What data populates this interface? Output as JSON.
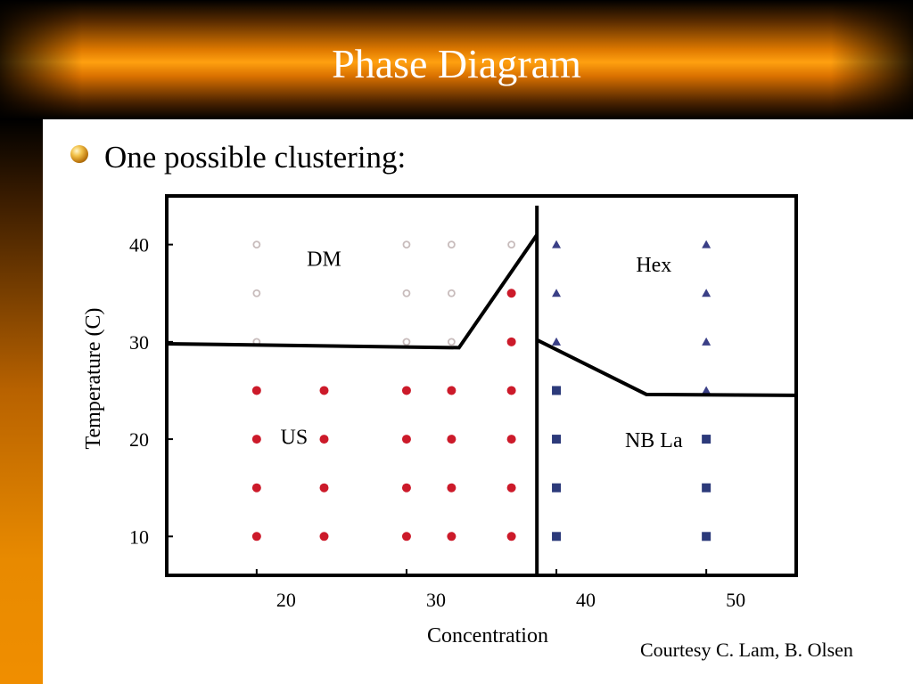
{
  "slide": {
    "title": "Phase Diagram",
    "bullet": "One possible clustering:",
    "credit": "Courtesy C. Lam, B. Olsen"
  },
  "colors": {
    "title_text": "#ffffff",
    "title_bar_accent": "#f39200",
    "sidebar_accent": "#e88a00",
    "us_points": "#cc1a2a",
    "dm_points": "#c8bcbc",
    "hex_points": "#3a3f86",
    "nb_la_points": "#2c3a7a",
    "boundary_lines": "#000000"
  },
  "chart_data": {
    "type": "scatter",
    "xlabel": "Concentration",
    "ylabel": "Temperature (C)",
    "xlim": [
      14,
      56
    ],
    "ylim": [
      6,
      45
    ],
    "xticks": [
      20,
      30,
      40,
      50
    ],
    "yticks": [
      10,
      20,
      30,
      40
    ],
    "regions": [
      {
        "label": "DM",
        "x": 24.5,
        "y": 37.8
      },
      {
        "label": "US",
        "x": 22.5,
        "y": 19.5
      },
      {
        "label": "Hex",
        "x": 46.5,
        "y": 37.2
      },
      {
        "label": "NB La",
        "x": 46.5,
        "y": 19.2
      }
    ],
    "series": [
      {
        "marker": "circle-open",
        "color": "#c8bcbc",
        "points": [
          [
            20,
            40
          ],
          [
            20,
            35
          ],
          [
            20,
            30
          ],
          [
            30,
            40
          ],
          [
            30,
            35
          ],
          [
            30,
            30
          ],
          [
            33,
            40
          ],
          [
            33,
            35
          ],
          [
            33,
            30
          ],
          [
            37,
            40
          ]
        ]
      },
      {
        "marker": "circle-filled",
        "color": "#cc1a2a",
        "points": [
          [
            20,
            25
          ],
          [
            20,
            20
          ],
          [
            20,
            15
          ],
          [
            20,
            10
          ],
          [
            24.5,
            25
          ],
          [
            24.5,
            20
          ],
          [
            24.5,
            15
          ],
          [
            24.5,
            10
          ],
          [
            30,
            25
          ],
          [
            30,
            20
          ],
          [
            30,
            15
          ],
          [
            30,
            10
          ],
          [
            33,
            25
          ],
          [
            33,
            20
          ],
          [
            33,
            15
          ],
          [
            33,
            10
          ],
          [
            37,
            35
          ],
          [
            37,
            30
          ],
          [
            37,
            25
          ],
          [
            37,
            20
          ],
          [
            37,
            15
          ],
          [
            37,
            10
          ]
        ]
      },
      {
        "marker": "triangle",
        "color": "#3a3f86",
        "points": [
          [
            40,
            40
          ],
          [
            40,
            35
          ],
          [
            40,
            30
          ],
          [
            50,
            40
          ],
          [
            50,
            35
          ],
          [
            50,
            30
          ],
          [
            50,
            25
          ]
        ]
      },
      {
        "marker": "square",
        "color": "#2c3a7a",
        "points": [
          [
            40,
            25
          ],
          [
            40,
            20
          ],
          [
            40,
            15
          ],
          [
            40,
            10
          ],
          [
            50,
            20
          ],
          [
            50,
            15
          ],
          [
            50,
            10
          ]
        ]
      }
    ],
    "boundaries": [
      [
        [
          14,
          29.8
        ],
        [
          33.5,
          29.4
        ],
        [
          38.7,
          41
        ]
      ],
      [
        [
          38.7,
          44
        ],
        [
          38.7,
          6
        ]
      ],
      [
        [
          38.7,
          30.2
        ],
        [
          46,
          24.6
        ],
        [
          56,
          24.5
        ]
      ]
    ]
  }
}
